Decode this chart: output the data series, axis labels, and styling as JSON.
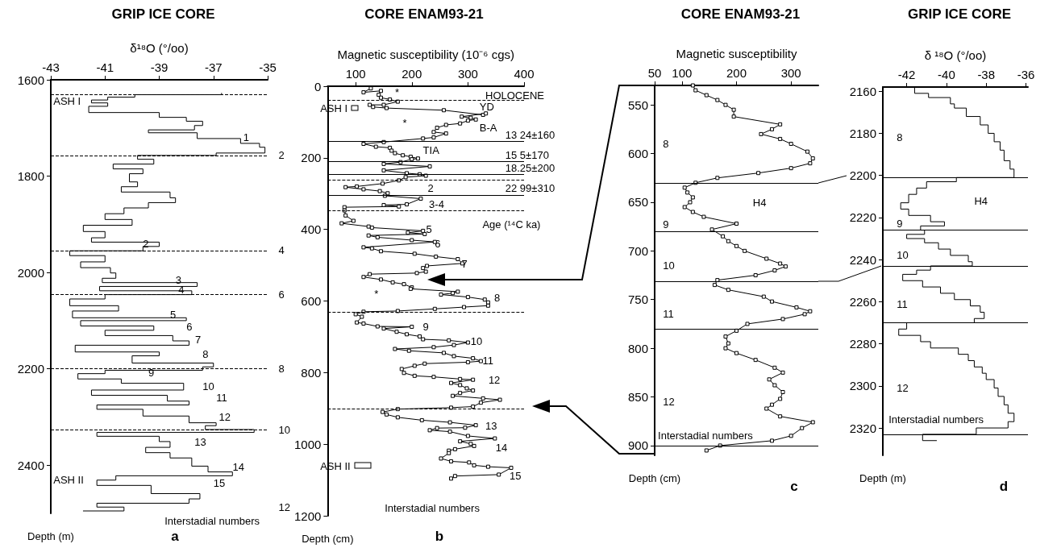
{
  "chart_data": [
    {
      "type": "step",
      "title": "GRIP ICE CORE",
      "subtitle": "a",
      "xlabel": "δ¹⁸O (°/oo)",
      "ylabel": "Depth (m)",
      "xlim": [
        -43,
        -35
      ],
      "ylim": [
        2500,
        1600
      ],
      "xticks": [
        -43,
        -41,
        -39,
        -37,
        -35
      ],
      "yticks": [
        1600,
        1800,
        2000,
        2200,
        2400
      ],
      "grid": false,
      "marker": "none",
      "line_style": "solid",
      "series": [
        {
          "color": "#000000",
          "x": [
            -36.7,
            -39.9,
            -40.9,
            -41.5,
            -40.9,
            -41.6,
            -39.0,
            -38.0,
            -37.4,
            -37.7,
            -39.4,
            -37.6,
            -36.0,
            -35.3,
            -35.1,
            -36.9,
            -39.8,
            -39.2,
            -40.7,
            -39.6,
            -40.1,
            -39.8,
            -40.4,
            -38.6,
            -38.4,
            -39.4,
            -40.3,
            -41.0,
            -40.0,
            -41.8,
            -41.0,
            -41.5,
            -39.0,
            -39.6,
            -42.3,
            -41.0,
            -41.9,
            -40.8,
            -40.6,
            -41.1,
            -37.6,
            -41.2,
            -37.8,
            -41.0,
            -42.3,
            -40.5,
            -42.2,
            -38.0,
            -41.9,
            -39.2,
            -41.0,
            -38.5,
            -37.9,
            -42.1,
            -39.0,
            -40.0,
            -37.0,
            -37.4,
            -41.0,
            -42.0,
            -40.4,
            -38.1,
            -41.5,
            -38.7,
            -37.9,
            -41.3,
            -39.6,
            -37.9,
            -36.9,
            -37.3,
            -35.5,
            -41.3,
            -39.0,
            -38.6,
            -39.5,
            -38.6,
            -37.8,
            -37.2,
            -36.3,
            -40.6,
            -41.3,
            -39.3,
            -37.5,
            -37.9,
            -41.3,
            -40.3,
            -41.8
          ],
          "values": [
            1628,
            1631,
            1636,
            1642,
            1648,
            1655,
            1668,
            1678,
            1686,
            1695,
            1704,
            1710,
            1722,
            1732,
            1740,
            1752,
            1757,
            1765,
            1775,
            1785,
            1795,
            1812,
            1822,
            1833,
            1845,
            1855,
            1866,
            1878,
            1890,
            1902,
            1915,
            1928,
            1937,
            1946,
            1955,
            1965,
            1978,
            1990,
            2001,
            2012,
            2021,
            2029,
            2038,
            2046,
            2055,
            2069,
            2080,
            2094,
            2100,
            2111,
            2120,
            2131,
            2142,
            2151,
            2165,
            2173,
            2188,
            2196,
            2203,
            2210,
            2221,
            2230,
            2244,
            2255,
            2267,
            2275,
            2284,
            2298,
            2312,
            2318,
            2326,
            2332,
            2340,
            2351,
            2363,
            2374,
            2385,
            2402,
            2414,
            2422,
            2431,
            2442,
            2459,
            2470,
            2479,
            2487,
            2495
          ]
        }
      ],
      "ref_lines": [
        {
          "axis": "y",
          "value": 1631,
          "line_style": "dashed"
        },
        {
          "axis": "y",
          "value": 1757,
          "line_style": "dashed"
        },
        {
          "axis": "y",
          "value": 1955,
          "line_style": "dashed"
        },
        {
          "axis": "y",
          "value": 2046,
          "line_style": "dashed"
        },
        {
          "axis": "y",
          "value": 2200,
          "line_style": "dashed"
        },
        {
          "axis": "y",
          "value": 2326,
          "line_style": "dashed"
        }
      ],
      "annotations": [
        "ASH I",
        "ASH II",
        "1",
        "2",
        "3",
        "4",
        "5",
        "6",
        "7",
        "8",
        "9",
        "10",
        "11",
        "12",
        "13",
        "14",
        "15",
        "2",
        "4",
        "6",
        "8",
        "10",
        "12",
        "Interstadial numbers"
      ]
    },
    {
      "type": "line",
      "title": "CORE ENAM93-21",
      "subtitle": "b",
      "xlabel": "Magnetic susceptibility (10⁻⁶ cgs)",
      "ylabel": "Depth (cm)",
      "xlim": [
        50,
        400
      ],
      "ylim": [
        1200,
        0
      ],
      "xticks": [
        100,
        200,
        300,
        400
      ],
      "yticks": [
        0,
        200,
        400,
        600,
        800,
        1000,
        1200
      ],
      "grid": false,
      "marker": "square",
      "line_style": "solid",
      "series": [
        {
          "color": "#000000",
          "x": [
            127,
            114,
            145,
            141,
            145,
            161,
            175,
            150,
            125,
            131,
            155,
            257,
            327,
            332,
            289,
            305,
            314,
            300,
            286,
            261,
            245,
            239,
            261,
            239,
            220,
            150,
            114,
            136,
            161,
            164,
            170,
            184,
            198,
            211,
            200,
            180,
            150,
            232,
            150,
            191,
            214,
            225,
            189,
            177,
            148,
            102,
            82,
            114,
            143,
            157,
            152,
            216,
            191,
            150,
            177,
            80,
            80,
            82,
            96,
            75,
            123,
            129,
            220,
            193,
            223,
            123,
            139,
            200,
            241,
            114,
            129,
            145,
            205,
            243,
            282,
            290,
            227,
            220,
            225,
            209,
            125,
            114,
            145,
            166,
            186,
            200,
            198,
            282,
            273,
            252,
            300,
            330,
            336,
            336,
            293,
            241,
            175,
            114,
            100,
            111,
            102,
            114,
            139,
            200,
            150,
            173,
            191,
            214,
            220,
            266,
            300,
            275,
            239,
            170,
            195,
            257,
            275,
            309,
            323,
            300,
            223,
            205,
            182,
            186,
            205,
            239,
            286,
            309,
            270,
            286,
            298,
            309,
            286,
            273,
            327,
            357,
            323,
            309,
            270,
            175,
            148,
            155,
            175,
            218,
            268,
            314,
            295,
            245,
            232,
            268,
            300,
            348,
            286,
            305,
            311,
            277,
            266,
            266,
            252,
            270,
            302,
            311,
            336,
            377,
            355,
            277,
            270
          ],
          "values": [
            6,
            17,
            13,
            24,
            32,
            37,
            43,
            52,
            52,
            58,
            61,
            67,
            80,
            76,
            85,
            88,
            93,
            96,
            104,
            108,
            116,
            128,
            132,
            143,
            146,
            156,
            161,
            169,
            172,
            180,
            187,
            193,
            197,
            202,
            204,
            212,
            217,
            224,
            235,
            243,
            246,
            250,
            254,
            263,
            272,
            280,
            282,
            288,
            293,
            299,
            306,
            314,
            330,
            332,
            336,
            338,
            347,
            361,
            376,
            383,
            392,
            395,
            404,
            409,
            413,
            417,
            422,
            430,
            435,
            450,
            453,
            461,
            468,
            476,
            483,
            495,
            502,
            508,
            518,
            522,
            525,
            533,
            540,
            548,
            553,
            562,
            566,
            574,
            578,
            582,
            589,
            596,
            604,
            613,
            617,
            622,
            628,
            630,
            637,
            644,
            660,
            663,
            671,
            672,
            677,
            686,
            693,
            699,
            707,
            710,
            716,
            723,
            729,
            734,
            739,
            745,
            754,
            760,
            768,
            771,
            775,
            781,
            790,
            801,
            809,
            812,
            818,
            820,
            829,
            835,
            844,
            850,
            857,
            865,
            872,
            876,
            884,
            895,
            898,
            902,
            910,
            917,
            925,
            933,
            939,
            947,
            954,
            955,
            961,
            965,
            977,
            984,
            992,
            999,
            1005,
            1014,
            1018,
            1025,
            1040,
            1048,
            1051,
            1059,
            1063,
            1066,
            1085,
            1089,
            1096
          ]
        }
      ],
      "ref_lines": [
        {
          "axis": "y",
          "value": 39,
          "line_style": "dashed"
        },
        {
          "axis": "y",
          "value": 154,
          "line_style": "solid"
        },
        {
          "axis": "y",
          "value": 210,
          "line_style": "solid"
        },
        {
          "axis": "y",
          "value": 247,
          "line_style": "solid"
        },
        {
          "axis": "y",
          "value": 262,
          "line_style": "dashed"
        },
        {
          "axis": "y",
          "value": 304,
          "line_style": "solid"
        },
        {
          "axis": "y",
          "value": 347,
          "line_style": "dashed"
        },
        {
          "axis": "y",
          "value": 632,
          "line_style": "dashed"
        },
        {
          "axis": "y",
          "value": 900,
          "line_style": "dashed"
        }
      ],
      "annotations": [
        "HOLOCENE",
        "YD",
        "B-A",
        "TIA",
        "2",
        "3-4",
        "Age (¹⁴C ka)",
        "ASH I",
        "*",
        "*",
        "*",
        "5",
        "6",
        "7",
        "8",
        "9",
        "10",
        "11",
        "12",
        "13",
        "14",
        "15",
        "ASH II",
        "Interstadial numbers",
        "13 24±160",
        "15 5±170",
        "18.25±200",
        "22 99±310"
      ]
    },
    {
      "type": "line",
      "title": "CORE ENAM93-21",
      "subtitle": "c",
      "xlabel": "Magnetic susceptibility",
      "ylabel": "Depth (cm)",
      "xlim": [
        50,
        350
      ],
      "ylim": [
        910,
        530
      ],
      "xticks": [
        50,
        100,
        200,
        300
      ],
      "yticks": [
        550,
        600,
        650,
        700,
        750,
        800,
        850,
        900
      ],
      "grid": false,
      "marker": "square",
      "line_style": "solid",
      "series": [
        {
          "color": "#000000",
          "x": [
            120,
            125,
            145,
            165,
            180,
            195,
            195,
            280,
            265,
            245,
            280,
            300,
            330,
            340,
            335,
            300,
            240,
            165,
            125,
            105,
            110,
            120,
            115,
            105,
            120,
            140,
            200,
            155,
            175,
            185,
            200,
            215,
            255,
            280,
            290,
            270,
            235,
            165,
            160,
            185,
            250,
            265,
            310,
            335,
            325,
            285,
            220,
            200,
            180,
            185,
            180,
            200,
            235,
            270,
            285,
            260,
            270,
            285,
            280,
            265,
            255,
            280,
            340,
            320,
            300,
            265,
            170,
            145
          ],
          "values": [
            530,
            535,
            540,
            545,
            550,
            555,
            562,
            570,
            575,
            580,
            585,
            590,
            598,
            605,
            610,
            615,
            620,
            625,
            630,
            635,
            640,
            645,
            650,
            655,
            660,
            665,
            672,
            678,
            685,
            690,
            695,
            700,
            708,
            713,
            716,
            720,
            725,
            730,
            735,
            740,
            747,
            752,
            758,
            762,
            765,
            770,
            775,
            782,
            788,
            795,
            800,
            805,
            812,
            820,
            825,
            832,
            838,
            845,
            852,
            858,
            862,
            870,
            876,
            882,
            890,
            895,
            900,
            905
          ]
        }
      ],
      "ref_lines": [
        {
          "axis": "y",
          "value": 630,
          "line_style": "solid"
        },
        {
          "axis": "y",
          "value": 680,
          "line_style": "solid"
        },
        {
          "axis": "y",
          "value": 731,
          "line_style": "solid"
        },
        {
          "axis": "y",
          "value": 780,
          "line_style": "solid"
        },
        {
          "axis": "y",
          "value": 900,
          "line_style": "solid"
        }
      ],
      "annotations": [
        "8",
        "H4",
        "9",
        "10",
        "11",
        "12",
        "Interstadial numbers"
      ]
    },
    {
      "type": "step",
      "title": "GRIP ICE CORE",
      "subtitle": "d",
      "xlabel": "δ ¹⁸O (°/oo)",
      "ylabel": "Depth (m)",
      "xlim": [
        -43.2,
        -35.9
      ],
      "ylim": [
        2333,
        2158
      ],
      "xticks": [
        -42,
        -40,
        -38,
        -36
      ],
      "yticks": [
        2160,
        2180,
        2200,
        2220,
        2240,
        2260,
        2280,
        2300,
        2320
      ],
      "grid": false,
      "marker": "none",
      "line_style": "solid",
      "series": [
        {
          "color": "#000000",
          "x": [
            -41.6,
            -40.9,
            -39.8,
            -39.6,
            -39.0,
            -38.3,
            -37.9,
            -37.6,
            -37.3,
            -37.1,
            -36.8,
            -36.6,
            -39.5,
            -41.0,
            -41.5,
            -41.9,
            -42.3,
            -41.9,
            -40.8,
            -40.1,
            -41.3,
            -41.1,
            -42.0,
            -41.1,
            -40.4,
            -39.8,
            -38.9,
            -38.7,
            -40.8,
            -41.5,
            -42.2,
            -41.2,
            -40.3,
            -39.6,
            -38.8,
            -38.3,
            -38.1,
            -38.6,
            -42.0,
            -42.4,
            -41.3,
            -40.8,
            -39.4,
            -38.9,
            -38.6,
            -38.2,
            -38.0,
            -37.6,
            -37.4,
            -37.1,
            -36.9,
            -36.6,
            -36.9,
            -38.5,
            -41.2,
            -40.5
          ],
          "values": [
            2158,
            2161,
            2163,
            2166,
            2168,
            2172,
            2176,
            2180,
            2184,
            2188,
            2193,
            2197,
            2201,
            2203,
            2206,
            2209,
            2213,
            2216,
            2219,
            2222,
            2224,
            2226,
            2228,
            2230,
            2232,
            2235,
            2238,
            2241,
            2243,
            2245,
            2247,
            2250,
            2253,
            2256,
            2259,
            2262,
            2265,
            2268,
            2270,
            2273,
            2276,
            2279,
            2282,
            2285,
            2288,
            2291,
            2294,
            2297,
            2301,
            2305,
            2309,
            2313,
            2317,
            2320,
            2323,
            2326
          ]
        }
      ],
      "ref_lines": [
        {
          "axis": "y",
          "value": 2201,
          "line_style": "solid"
        },
        {
          "axis": "y",
          "value": 2226,
          "line_style": "solid"
        },
        {
          "axis": "y",
          "value": 2243,
          "line_style": "solid"
        },
        {
          "axis": "y",
          "value": 2270,
          "line_style": "solid"
        },
        {
          "axis": "y",
          "value": 2323,
          "line_style": "solid"
        }
      ],
      "annotations": [
        "8",
        "H4",
        "9",
        "10",
        "11",
        "12",
        "Interstadial numbers"
      ]
    }
  ]
}
